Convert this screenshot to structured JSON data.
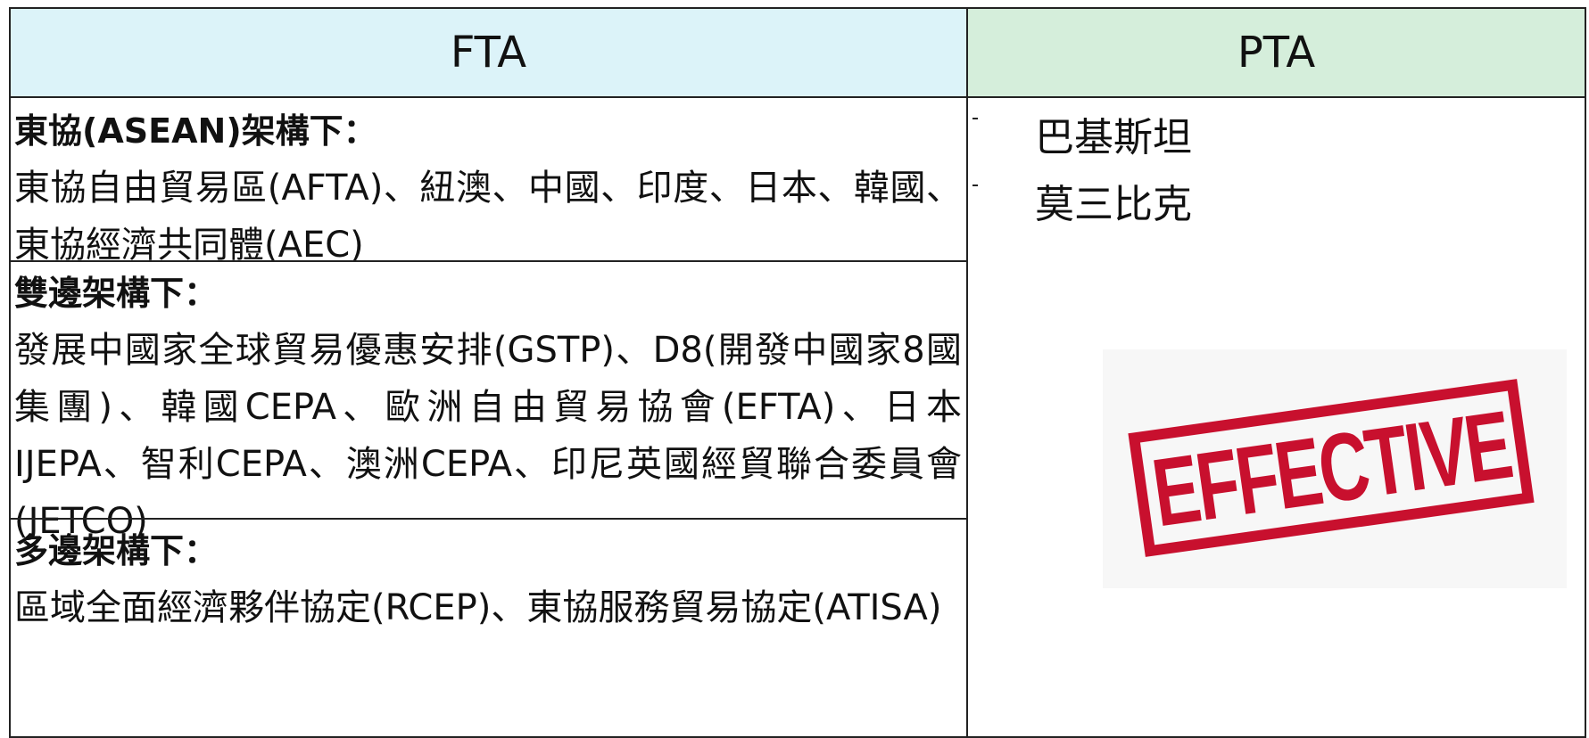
{
  "header": {
    "fta": "FTA",
    "pta": "PTA"
  },
  "fta_sections": [
    {
      "heading": "東協(ASEAN)架構下：",
      "body": "東協自由貿易區(AFTA)、紐澳、中國、印度、日本、韓國、東協經濟共同體(AEC)"
    },
    {
      "heading": "雙邊架構下：",
      "body": "發展中國家全球貿易優惠安排(GSTP)、D8(開發中國家8國集團)、韓國CEPA、歐洲自由貿易協會(EFTA)、日本IJEPA、智利CEPA、澳洲CEPA、印尼英國經貿聯合委員會(JETCO)"
    },
    {
      "heading": "多邊架構下：",
      "body": "區域全面經濟夥伴協定(RCEP)、東協服務貿易協定(ATISA)"
    }
  ],
  "pta_items": [
    "巴基斯坦",
    "莫三比克"
  ],
  "stamp": "EFFECTIVE"
}
